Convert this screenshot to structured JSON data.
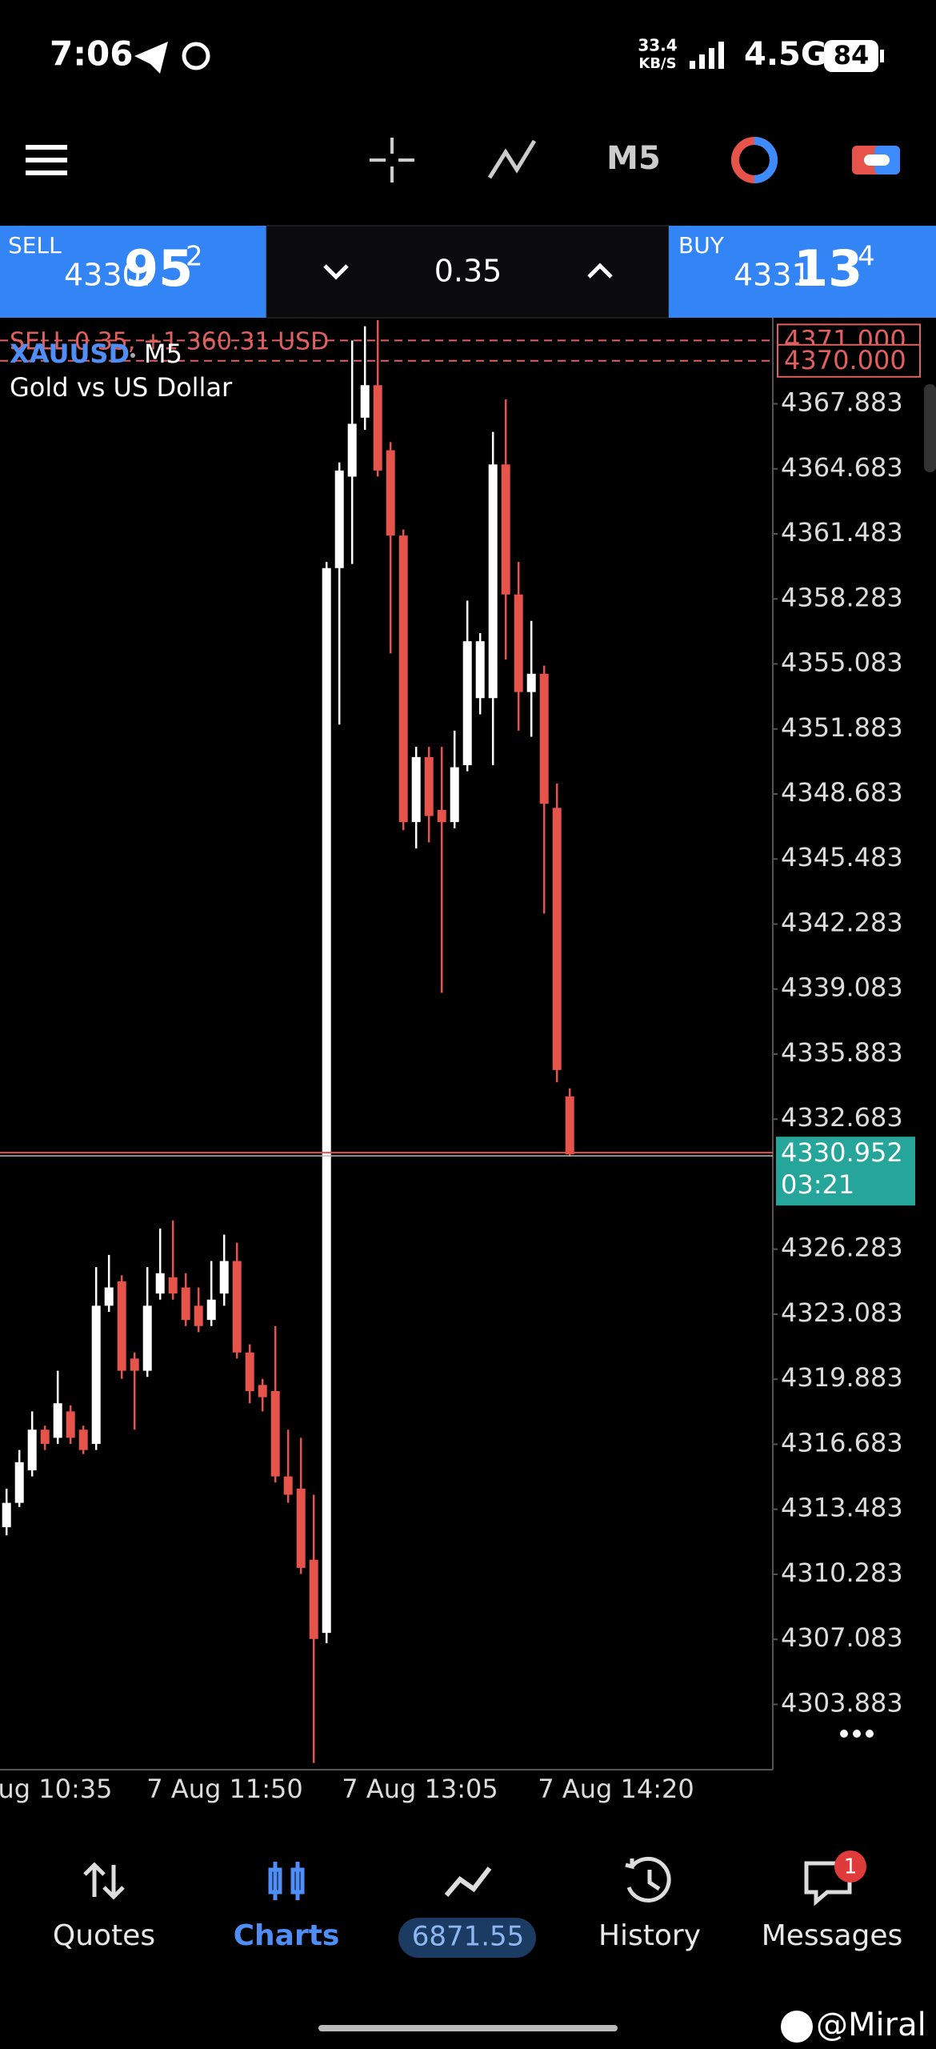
{
  "status_bar": {
    "time": "7:06",
    "speed_value": "33.4",
    "speed_unit": "KB/S",
    "network": "4.5G",
    "battery": "84"
  },
  "toolbar": {
    "timeframe": "M5"
  },
  "trade_bar": {
    "sell_label": "SELL",
    "sell_big": "4330.",
    "sell_pips": "95",
    "sell_point": "2",
    "volume": "0.35",
    "buy_label": "BUY",
    "buy_big": "4331.",
    "buy_pips": "13",
    "buy_point": "4"
  },
  "chart": {
    "symbol": "XAUUSD",
    "timeframe": "M5",
    "description": "Gold vs US Dollar",
    "position_text": "SELL 0.35, +1 360.31 USD",
    "position_lines": [
      {
        "value": 4371,
        "label": "4371.000"
      },
      {
        "value": 4370,
        "label": "4370.000"
      }
    ],
    "current_price": 4330.952,
    "countdown": "03:21",
    "ylim": [
      4300.67,
      4372.0
    ],
    "yticks": [
      4367.883,
      4364.683,
      4361.483,
      4358.283,
      4355.083,
      4351.883,
      4348.683,
      4345.483,
      4342.283,
      4339.083,
      4335.883,
      4332.683,
      4326.283,
      4323.083,
      4319.883,
      4316.683,
      4313.483,
      4310.283,
      4307.083,
      4303.883
    ],
    "x_labels": [
      "ug 10:35",
      "7 Aug 11:50",
      "7 Aug 13:05",
      "7 Aug 14:20"
    ],
    "up_color": "#ffffff",
    "down_color": "#e5534b",
    "candles": [
      {
        "open": 4312.6,
        "high": 4314.5,
        "low": 4312.2,
        "close": 4313.8
      },
      {
        "open": 4313.8,
        "high": 4316.4,
        "low": 4313.6,
        "close": 4315.8
      },
      {
        "open": 4315.4,
        "high": 4318.3,
        "low": 4315.1,
        "close": 4317.4
      },
      {
        "open": 4317.4,
        "high": 4317.6,
        "low": 4316.4,
        "close": 4316.7
      },
      {
        "open": 4317.0,
        "high": 4320.3,
        "low": 4316.7,
        "close": 4318.7
      },
      {
        "open": 4318.3,
        "high": 4318.6,
        "low": 4316.7,
        "close": 4317.0
      },
      {
        "open": 4317.4,
        "high": 4317.6,
        "low": 4316.2,
        "close": 4316.4
      },
      {
        "open": 4316.7,
        "high": 4325.4,
        "low": 4316.4,
        "close": 4323.5
      },
      {
        "open": 4323.5,
        "high": 4326.0,
        "low": 4323.2,
        "close": 4324.4
      },
      {
        "open": 4324.7,
        "high": 4325.0,
        "low": 4319.9,
        "close": 4320.3
      },
      {
        "open": 4320.9,
        "high": 4321.2,
        "low": 4317.4,
        "close": 4320.3
      },
      {
        "open": 4320.3,
        "high": 4325.4,
        "low": 4320.0,
        "close": 4323.5
      },
      {
        "open": 4324.1,
        "high": 4327.3,
        "low": 4323.8,
        "close": 4325.1
      },
      {
        "open": 4324.9,
        "high": 4327.7,
        "low": 4323.8,
        "close": 4324.1
      },
      {
        "open": 4324.4,
        "high": 4325.1,
        "low": 4322.5,
        "close": 4322.8
      },
      {
        "open": 4323.5,
        "high": 4324.4,
        "low": 4322.2,
        "close": 4322.5
      },
      {
        "open": 4322.8,
        "high": 4325.7,
        "low": 4322.5,
        "close": 4323.8
      },
      {
        "open": 4324.1,
        "high": 4327.0,
        "low": 4323.5,
        "close": 4325.7
      },
      {
        "open": 4325.7,
        "high": 4326.6,
        "low": 4320.9,
        "close": 4321.2
      },
      {
        "open": 4321.2,
        "high": 4321.6,
        "low": 4318.7,
        "close": 4319.3
      },
      {
        "open": 4319.6,
        "high": 4319.9,
        "low": 4318.3,
        "close": 4319.0
      },
      {
        "open": 4319.3,
        "high": 4322.5,
        "low": 4314.8,
        "close": 4315.1
      },
      {
        "open": 4315.1,
        "high": 4317.4,
        "low": 4313.8,
        "close": 4314.2
      },
      {
        "open": 4314.5,
        "high": 4317.0,
        "low": 4310.3,
        "close": 4310.6
      },
      {
        "open": 4311.0,
        "high": 4314.2,
        "low": 4301.0,
        "close": 4307.1
      },
      {
        "open": 4307.4,
        "high": 4360.1,
        "low": 4306.9,
        "close": 4359.8
      },
      {
        "open": 4359.8,
        "high": 4365.0,
        "low": 4352.1,
        "close": 4364.6
      },
      {
        "open": 4364.3,
        "high": 4371.0,
        "low": 4360.0,
        "close": 4366.9
      },
      {
        "open": 4367.2,
        "high": 4371.7,
        "low": 4366.6,
        "close": 4368.8
      },
      {
        "open": 4368.8,
        "high": 4372.0,
        "low": 4364.3,
        "close": 4364.6
      },
      {
        "open": 4365.6,
        "high": 4366.0,
        "low": 4355.6,
        "close": 4361.4
      },
      {
        "open": 4361.4,
        "high": 4361.7,
        "low": 4346.9,
        "close": 4347.3
      },
      {
        "open": 4347.3,
        "high": 4351.0,
        "low": 4346.0,
        "close": 4350.5
      },
      {
        "open": 4350.5,
        "high": 4351.0,
        "low": 4346.3,
        "close": 4347.6
      },
      {
        "open": 4347.9,
        "high": 4351.0,
        "low": 4338.9,
        "close": 4347.3
      },
      {
        "open": 4347.3,
        "high": 4351.8,
        "low": 4347.0,
        "close": 4350.0
      },
      {
        "open": 4350.1,
        "high": 4358.2,
        "low": 4349.8,
        "close": 4356.2
      },
      {
        "open": 4353.4,
        "high": 4356.6,
        "low": 4352.6,
        "close": 4356.2
      },
      {
        "open": 4353.4,
        "high": 4366.5,
        "low": 4350.1,
        "close": 4364.9
      },
      {
        "open": 4364.9,
        "high": 4368.1,
        "low": 4355.3,
        "close": 4358.5
      },
      {
        "open": 4358.5,
        "high": 4360.1,
        "low": 4351.8,
        "close": 4353.7
      },
      {
        "open": 4353.7,
        "high": 4357.2,
        "low": 4351.5,
        "close": 4354.6
      },
      {
        "open": 4354.6,
        "high": 4355.0,
        "low": 4342.8,
        "close": 4348.2
      },
      {
        "open": 4348.0,
        "high": 4349.2,
        "low": 4334.5,
        "close": 4335.1
      },
      {
        "open": 4333.8,
        "high": 4334.2,
        "low": 4330.9,
        "close": 4330.952
      }
    ]
  },
  "bottom_nav": {
    "quotes": "Quotes",
    "charts": "Charts",
    "balance": "6871.55",
    "history": "History",
    "messages": "Messages",
    "badge": "1"
  },
  "watermark": "@Miral"
}
